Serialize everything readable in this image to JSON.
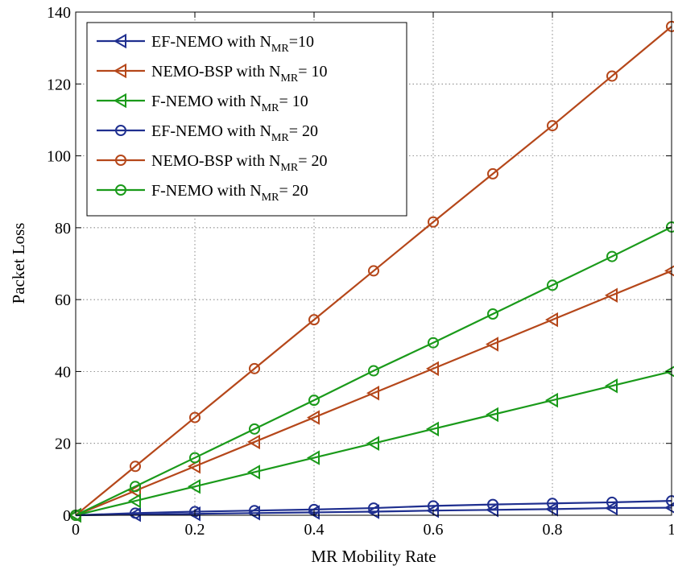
{
  "chart_data": {
    "type": "line",
    "xlabel": "MR Mobility Rate",
    "ylabel": "Packet Loss",
    "xlim": [
      0,
      1
    ],
    "ylim": [
      0,
      140
    ],
    "xticks": [
      0,
      0.2,
      0.4,
      0.6,
      0.8,
      1
    ],
    "xtick_labels": [
      "0",
      "0.2",
      "0.4",
      "0.6",
      "0.8",
      "1"
    ],
    "yticks": [
      0,
      20,
      40,
      60,
      80,
      100,
      120,
      140
    ],
    "ytick_labels": [
      "0",
      "20",
      "40",
      "60",
      "80",
      "100",
      "120",
      "140"
    ],
    "grid": true,
    "legend_position": "top-left",
    "x": [
      0,
      0.1,
      0.2,
      0.3,
      0.4,
      0.5,
      0.6,
      0.7,
      0.8,
      0.9,
      1.0
    ],
    "series": [
      {
        "name": "EF-NEMO with N",
        "sub": "MR",
        "suffix": "=10",
        "color": "#1f2f8f",
        "marker": "triangle-left",
        "values": [
          0,
          0.2,
          0.4,
          0.6,
          0.8,
          1.0,
          1.3,
          1.5,
          1.7,
          2.0,
          2.1
        ]
      },
      {
        "name": "NEMO-BSP with N",
        "sub": "MR",
        "suffix": "= 10",
        "color": "#b5471a",
        "marker": "triangle-left",
        "values": [
          0,
          6.8,
          13.6,
          20.4,
          27.2,
          34.0,
          40.8,
          47.6,
          54.4,
          61.2,
          68.0
        ]
      },
      {
        "name": "F-NEMO with N",
        "sub": "MR",
        "suffix": "= 10",
        "color": "#1a9a1a",
        "marker": "triangle-left",
        "values": [
          0,
          4.0,
          8.0,
          12.0,
          16.0,
          20.0,
          24.0,
          28.0,
          32.0,
          36.0,
          40.0
        ]
      },
      {
        "name": "EF-NEMO with N",
        "sub": "MR",
        "suffix": "= 20",
        "color": "#1f2f8f",
        "marker": "circle",
        "values": [
          0,
          0.6,
          1.0,
          1.3,
          1.6,
          2.0,
          2.6,
          3.0,
          3.3,
          3.6,
          4.0
        ]
      },
      {
        "name": "NEMO-BSP with N",
        "sub": "MR",
        "suffix": "= 20",
        "color": "#b5471a",
        "marker": "circle",
        "values": [
          0,
          13.6,
          27.2,
          40.8,
          54.4,
          68.0,
          81.6,
          95.0,
          108.4,
          122.2,
          136.0
        ]
      },
      {
        "name": "F-NEMO with N",
        "sub": "MR",
        "suffix": "= 20",
        "color": "#1a9a1a",
        "marker": "circle",
        "values": [
          0,
          8.0,
          16.0,
          24.0,
          32.0,
          40.2,
          48.0,
          56.0,
          64.0,
          72.0,
          80.2
        ]
      }
    ]
  }
}
